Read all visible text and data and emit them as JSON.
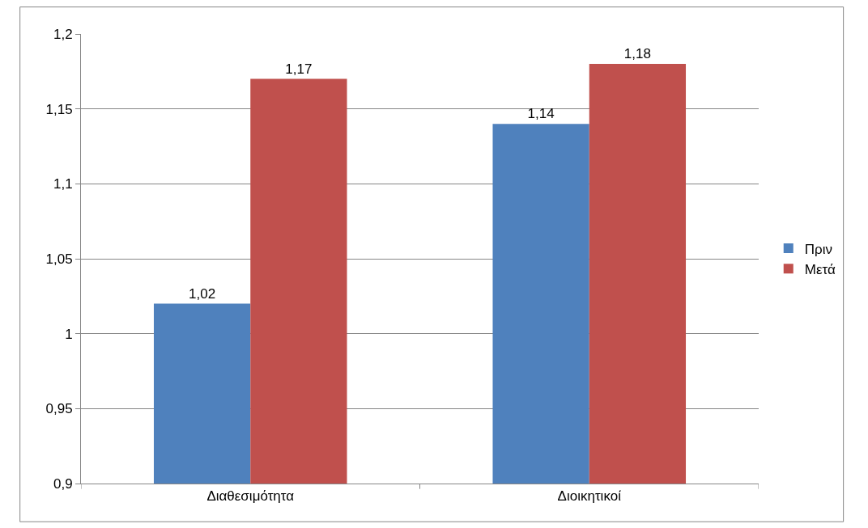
{
  "chart_data": {
    "type": "bar",
    "categories": [
      "Διαθεσιμότητα",
      "Διοικητικοί"
    ],
    "series": [
      {
        "name": "Πριν",
        "color": "#4f81bd",
        "values": [
          1.02,
          1.14
        ],
        "value_labels": [
          "1,02",
          "1,14"
        ]
      },
      {
        "name": "Μετά",
        "color": "#c0504d",
        "values": [
          1.17,
          1.18
        ],
        "value_labels": [
          "1,17",
          "1,18"
        ]
      }
    ],
    "ylim": [
      0.9,
      1.2
    ],
    "yticks": [
      {
        "value": 0.9,
        "label": "0,9"
      },
      {
        "value": 0.95,
        "label": "0,95"
      },
      {
        "value": 1.0,
        "label": "1"
      },
      {
        "value": 1.05,
        "label": "1,05"
      },
      {
        "value": 1.1,
        "label": "1,1"
      },
      {
        "value": 1.15,
        "label": "1,15"
      },
      {
        "value": 1.2,
        "label": "1,2"
      }
    ],
    "grid": "y",
    "legend": "right"
  }
}
